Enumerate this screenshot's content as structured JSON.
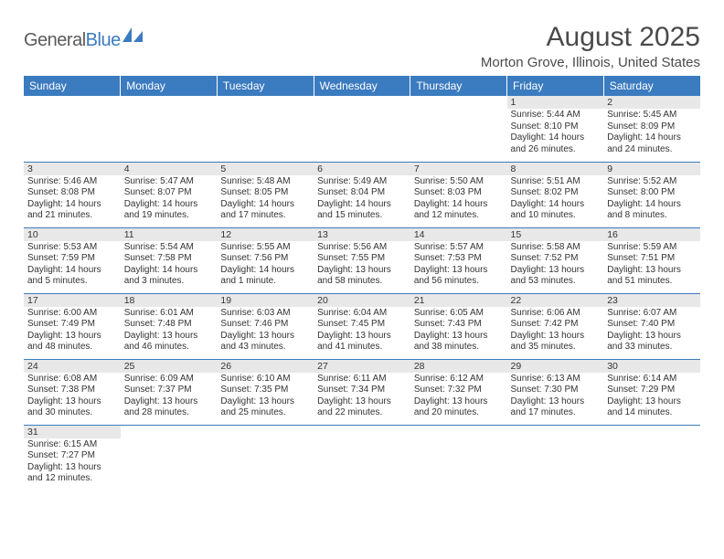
{
  "logo": {
    "part1": "General",
    "part2": "Blue",
    "shape_color": "#3b7bbf"
  },
  "title": "August 2025",
  "subtitle": "Morton Grove, Illinois, United States",
  "colors": {
    "header_bg": "#3b7bbf",
    "header_text": "#ffffff",
    "daynum_bg": "#e8e8e8",
    "rule": "#3b7bbf"
  },
  "weekdays": [
    "Sunday",
    "Monday",
    "Tuesday",
    "Wednesday",
    "Thursday",
    "Friday",
    "Saturday"
  ],
  "weeks": [
    [
      {
        "empty": true
      },
      {
        "empty": true
      },
      {
        "empty": true
      },
      {
        "empty": true
      },
      {
        "empty": true
      },
      {
        "day": "1",
        "sunrise": "Sunrise: 5:44 AM",
        "sunset": "Sunset: 8:10 PM",
        "daylight": "Daylight: 14 hours and 26 minutes."
      },
      {
        "day": "2",
        "sunrise": "Sunrise: 5:45 AM",
        "sunset": "Sunset: 8:09 PM",
        "daylight": "Daylight: 14 hours and 24 minutes."
      }
    ],
    [
      {
        "day": "3",
        "sunrise": "Sunrise: 5:46 AM",
        "sunset": "Sunset: 8:08 PM",
        "daylight": "Daylight: 14 hours and 21 minutes."
      },
      {
        "day": "4",
        "sunrise": "Sunrise: 5:47 AM",
        "sunset": "Sunset: 8:07 PM",
        "daylight": "Daylight: 14 hours and 19 minutes."
      },
      {
        "day": "5",
        "sunrise": "Sunrise: 5:48 AM",
        "sunset": "Sunset: 8:05 PM",
        "daylight": "Daylight: 14 hours and 17 minutes."
      },
      {
        "day": "6",
        "sunrise": "Sunrise: 5:49 AM",
        "sunset": "Sunset: 8:04 PM",
        "daylight": "Daylight: 14 hours and 15 minutes."
      },
      {
        "day": "7",
        "sunrise": "Sunrise: 5:50 AM",
        "sunset": "Sunset: 8:03 PM",
        "daylight": "Daylight: 14 hours and 12 minutes."
      },
      {
        "day": "8",
        "sunrise": "Sunrise: 5:51 AM",
        "sunset": "Sunset: 8:02 PM",
        "daylight": "Daylight: 14 hours and 10 minutes."
      },
      {
        "day": "9",
        "sunrise": "Sunrise: 5:52 AM",
        "sunset": "Sunset: 8:00 PM",
        "daylight": "Daylight: 14 hours and 8 minutes."
      }
    ],
    [
      {
        "day": "10",
        "sunrise": "Sunrise: 5:53 AM",
        "sunset": "Sunset: 7:59 PM",
        "daylight": "Daylight: 14 hours and 5 minutes."
      },
      {
        "day": "11",
        "sunrise": "Sunrise: 5:54 AM",
        "sunset": "Sunset: 7:58 PM",
        "daylight": "Daylight: 14 hours and 3 minutes."
      },
      {
        "day": "12",
        "sunrise": "Sunrise: 5:55 AM",
        "sunset": "Sunset: 7:56 PM",
        "daylight": "Daylight: 14 hours and 1 minute."
      },
      {
        "day": "13",
        "sunrise": "Sunrise: 5:56 AM",
        "sunset": "Sunset: 7:55 PM",
        "daylight": "Daylight: 13 hours and 58 minutes."
      },
      {
        "day": "14",
        "sunrise": "Sunrise: 5:57 AM",
        "sunset": "Sunset: 7:53 PM",
        "daylight": "Daylight: 13 hours and 56 minutes."
      },
      {
        "day": "15",
        "sunrise": "Sunrise: 5:58 AM",
        "sunset": "Sunset: 7:52 PM",
        "daylight": "Daylight: 13 hours and 53 minutes."
      },
      {
        "day": "16",
        "sunrise": "Sunrise: 5:59 AM",
        "sunset": "Sunset: 7:51 PM",
        "daylight": "Daylight: 13 hours and 51 minutes."
      }
    ],
    [
      {
        "day": "17",
        "sunrise": "Sunrise: 6:00 AM",
        "sunset": "Sunset: 7:49 PM",
        "daylight": "Daylight: 13 hours and 48 minutes."
      },
      {
        "day": "18",
        "sunrise": "Sunrise: 6:01 AM",
        "sunset": "Sunset: 7:48 PM",
        "daylight": "Daylight: 13 hours and 46 minutes."
      },
      {
        "day": "19",
        "sunrise": "Sunrise: 6:03 AM",
        "sunset": "Sunset: 7:46 PM",
        "daylight": "Daylight: 13 hours and 43 minutes."
      },
      {
        "day": "20",
        "sunrise": "Sunrise: 6:04 AM",
        "sunset": "Sunset: 7:45 PM",
        "daylight": "Daylight: 13 hours and 41 minutes."
      },
      {
        "day": "21",
        "sunrise": "Sunrise: 6:05 AM",
        "sunset": "Sunset: 7:43 PM",
        "daylight": "Daylight: 13 hours and 38 minutes."
      },
      {
        "day": "22",
        "sunrise": "Sunrise: 6:06 AM",
        "sunset": "Sunset: 7:42 PM",
        "daylight": "Daylight: 13 hours and 35 minutes."
      },
      {
        "day": "23",
        "sunrise": "Sunrise: 6:07 AM",
        "sunset": "Sunset: 7:40 PM",
        "daylight": "Daylight: 13 hours and 33 minutes."
      }
    ],
    [
      {
        "day": "24",
        "sunrise": "Sunrise: 6:08 AM",
        "sunset": "Sunset: 7:38 PM",
        "daylight": "Daylight: 13 hours and 30 minutes."
      },
      {
        "day": "25",
        "sunrise": "Sunrise: 6:09 AM",
        "sunset": "Sunset: 7:37 PM",
        "daylight": "Daylight: 13 hours and 28 minutes."
      },
      {
        "day": "26",
        "sunrise": "Sunrise: 6:10 AM",
        "sunset": "Sunset: 7:35 PM",
        "daylight": "Daylight: 13 hours and 25 minutes."
      },
      {
        "day": "27",
        "sunrise": "Sunrise: 6:11 AM",
        "sunset": "Sunset: 7:34 PM",
        "daylight": "Daylight: 13 hours and 22 minutes."
      },
      {
        "day": "28",
        "sunrise": "Sunrise: 6:12 AM",
        "sunset": "Sunset: 7:32 PM",
        "daylight": "Daylight: 13 hours and 20 minutes."
      },
      {
        "day": "29",
        "sunrise": "Sunrise: 6:13 AM",
        "sunset": "Sunset: 7:30 PM",
        "daylight": "Daylight: 13 hours and 17 minutes."
      },
      {
        "day": "30",
        "sunrise": "Sunrise: 6:14 AM",
        "sunset": "Sunset: 7:29 PM",
        "daylight": "Daylight: 13 hours and 14 minutes."
      }
    ],
    [
      {
        "day": "31",
        "sunrise": "Sunrise: 6:15 AM",
        "sunset": "Sunset: 7:27 PM",
        "daylight": "Daylight: 13 hours and 12 minutes."
      },
      {
        "empty": true
      },
      {
        "empty": true
      },
      {
        "empty": true
      },
      {
        "empty": true
      },
      {
        "empty": true
      },
      {
        "empty": true
      }
    ]
  ]
}
